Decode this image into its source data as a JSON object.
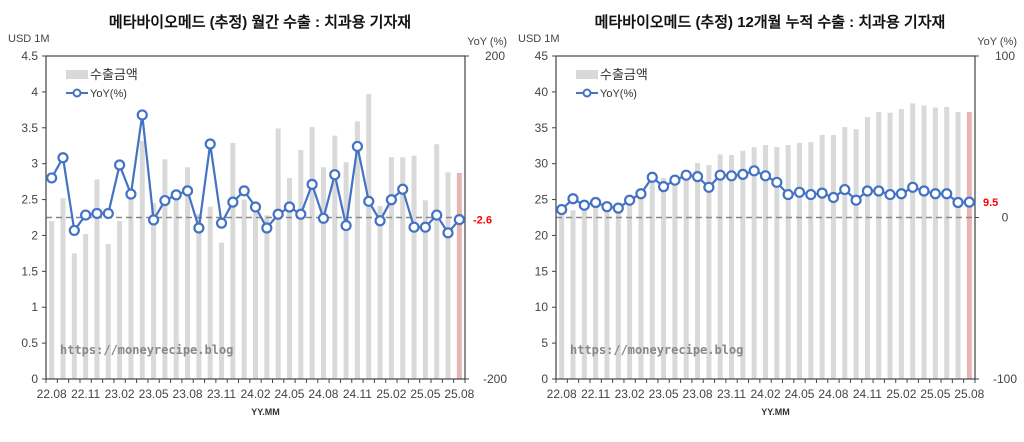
{
  "chart_data": [
    {
      "type": "bar+line",
      "title": "메타바이오메드 (추정) 월간 수출 : 치과용 기자재",
      "xlabel": "YY.MM",
      "ylabel": "USD 1M",
      "y2label": "YoY (%)",
      "ylim": [
        0,
        4.5
      ],
      "yticks": [
        "0",
        "0.5",
        "1",
        "1.5",
        "2",
        "2.5",
        "3",
        "3.5",
        "4",
        "4.5"
      ],
      "y2lim": [
        -200,
        200
      ],
      "y2ticks": [
        "-200",
        "200"
      ],
      "legend": {
        "bar": "수출금액",
        "line": "YoY(%)",
        "position": "top-left"
      },
      "xticks": [
        "22.08",
        "22.11",
        "23.02",
        "23.05",
        "23.08",
        "23.11",
        "24.02",
        "24.05",
        "24.08",
        "24.11",
        "25.02",
        "25.05",
        "25.08"
      ],
      "categories": [
        "22.08",
        "22.09",
        "22.10",
        "22.11",
        "22.12",
        "23.01",
        "23.02",
        "23.03",
        "23.04",
        "23.05",
        "23.06",
        "23.07",
        "23.08",
        "23.09",
        "23.10",
        "23.11",
        "23.12",
        "24.01",
        "24.02",
        "24.03",
        "24.04",
        "24.05",
        "24.06",
        "24.07",
        "24.08",
        "24.09",
        "24.10",
        "24.11",
        "24.12",
        "25.01",
        "25.02",
        "25.03",
        "25.04",
        "25.05",
        "25.06",
        "25.07",
        "25.08"
      ],
      "series": [
        {
          "name": "수출금액",
          "values": [
            2.2,
            2.52,
            1.75,
            2.02,
            2.78,
            1.88,
            2.2,
            2.5,
            3.32,
            2.45,
            3.06,
            2.5,
            2.95,
            2.3,
            2.4,
            1.9,
            3.29,
            2.5,
            2.4,
            2.28,
            3.49,
            2.8,
            3.19,
            3.51,
            2.95,
            3.39,
            3.02,
            3.59,
            3.97,
            2.41,
            3.09,
            3.09,
            3.11,
            2.49,
            3.27,
            2.88,
            2.87
          ]
        },
        {
          "name": "YoY(%)",
          "values": [
            49,
            74,
            -16,
            3,
            5,
            5,
            65,
            29,
            127,
            -3,
            21,
            28,
            33,
            -13,
            91,
            -7,
            19,
            33,
            13,
            -13,
            4,
            13,
            4,
            41,
            -1,
            53,
            -10,
            88,
            20,
            -4,
            22,
            35,
            -12,
            -12,
            3,
            -19,
            -2.6
          ]
        }
      ],
      "last_label": "-2.6",
      "watermark": "https://moneyrecipe.blog",
      "colors": {
        "bar": "#d9d9d9",
        "bar_last": "#e8b4b4",
        "line": "#4472c4",
        "label": "#ff0000"
      }
    },
    {
      "type": "bar+line",
      "title": "메타바이오메드 (추정) 12개월 누적 수출 : 치과용 기자재",
      "xlabel": "YY.MM",
      "ylabel": "USD 1M",
      "y2label": "YoY (%)",
      "ylim": [
        0,
        45
      ],
      "yticks": [
        "0",
        "5",
        "10",
        "15",
        "20",
        "25",
        "30",
        "35",
        "40",
        "45"
      ],
      "y2lim": [
        -100,
        100
      ],
      "y2ticks": [
        "-100",
        "0",
        "100"
      ],
      "legend": {
        "bar": "수출금액",
        "line": "YoY(%)",
        "position": "top-left"
      },
      "xticks": [
        "22.08",
        "22.11",
        "23.02",
        "23.05",
        "23.08",
        "23.11",
        "24.02",
        "24.05",
        "24.08",
        "24.11",
        "25.02",
        "25.05",
        "25.08"
      ],
      "categories": [
        "22.08",
        "22.09",
        "22.10",
        "22.11",
        "22.12",
        "23.01",
        "23.02",
        "23.03",
        "23.04",
        "23.05",
        "23.06",
        "23.07",
        "23.08",
        "23.09",
        "23.10",
        "23.11",
        "23.12",
        "24.01",
        "24.02",
        "24.03",
        "24.04",
        "24.05",
        "24.06",
        "24.07",
        "24.08",
        "24.09",
        "24.10",
        "24.11",
        "24.12",
        "25.01",
        "25.02",
        "25.03",
        "25.04",
        "25.05",
        "25.06",
        "25.07",
        "25.08"
      ],
      "series": [
        {
          "name": "수출금액",
          "values": [
            23,
            23.5,
            24,
            24.5,
            24.5,
            24.5,
            25,
            26,
            27.5,
            28,
            28.5,
            29,
            30.1,
            29.8,
            31.3,
            31.2,
            31.8,
            32.3,
            32.6,
            32.3,
            32.6,
            32.9,
            33.0,
            34.0,
            34.0,
            35.1,
            34.8,
            36.5,
            37.2,
            37.1,
            37.6,
            38.4,
            38.1,
            37.8,
            37.9,
            37.2,
            37.2
          ]
        },
        {
          "name": "YoY(%)",
          "values": [
            4.9,
            11.6,
            7.6,
            9.3,
            6.7,
            5.8,
            10.7,
            14.7,
            24.9,
            19.1,
            23.1,
            26.2,
            25.3,
            18.7,
            26.2,
            25.8,
            26.7,
            28.9,
            25.8,
            21.8,
            14.2,
            15.6,
            14.2,
            15.1,
            12.4,
            17.3,
            10.7,
            16.4,
            16.4,
            14.2,
            14.7,
            18.7,
            16.4,
            14.7,
            14.7,
            9.3,
            9.5
          ]
        }
      ],
      "last_label": "9.5",
      "watermark": "https://moneyrecipe.blog",
      "colors": {
        "bar": "#d9d9d9",
        "bar_last": "#e8b4b4",
        "line": "#4472c4",
        "label": "#ff0000"
      }
    }
  ]
}
